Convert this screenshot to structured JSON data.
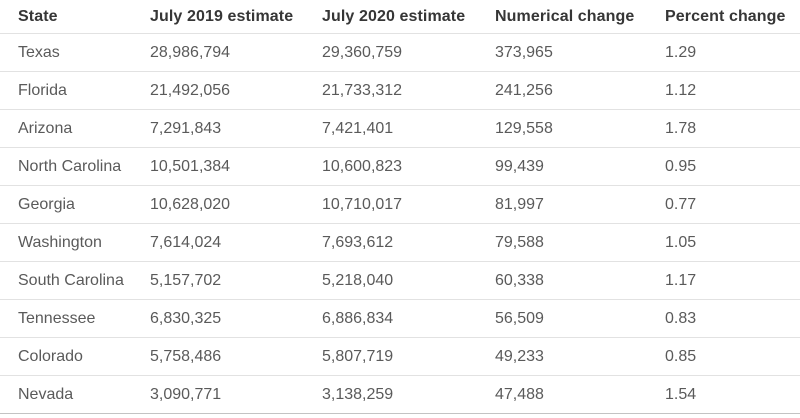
{
  "colors": {
    "header_text": "#363636",
    "body_text": "#5a5a5a",
    "row_divider": "#e2e2e2",
    "bottom_border": "#c3c3c3",
    "background": "#ffffff"
  },
  "chart_data": {
    "type": "table",
    "title": "",
    "columns": [
      "State",
      "July 2019 estimate",
      "July 2020 estimate",
      "Numerical change",
      "Percent change"
    ],
    "rows": [
      [
        "Texas",
        "28,986,794",
        "29,360,759",
        "373,965",
        "1.29"
      ],
      [
        "Florida",
        "21,492,056",
        "21,733,312",
        "241,256",
        "1.12"
      ],
      [
        "Arizona",
        "7,291,843",
        "7,421,401",
        "129,558",
        "1.78"
      ],
      [
        "North Carolina",
        "10,501,384",
        "10,600,823",
        "99,439",
        "0.95"
      ],
      [
        "Georgia",
        "10,628,020",
        "10,710,017",
        "81,997",
        "0.77"
      ],
      [
        "Washington",
        "7,614,024",
        "7,693,612",
        "79,588",
        "1.05"
      ],
      [
        "South Carolina",
        "5,157,702",
        "5,218,040",
        "60,338",
        "1.17"
      ],
      [
        "Tennessee",
        "6,830,325",
        "6,886,834",
        "56,509",
        "0.83"
      ],
      [
        "Colorado",
        "5,758,486",
        "5,807,719",
        "49,233",
        "0.85"
      ],
      [
        "Nevada",
        "3,090,771",
        "3,138,259",
        "47,488",
        "1.54"
      ]
    ]
  }
}
